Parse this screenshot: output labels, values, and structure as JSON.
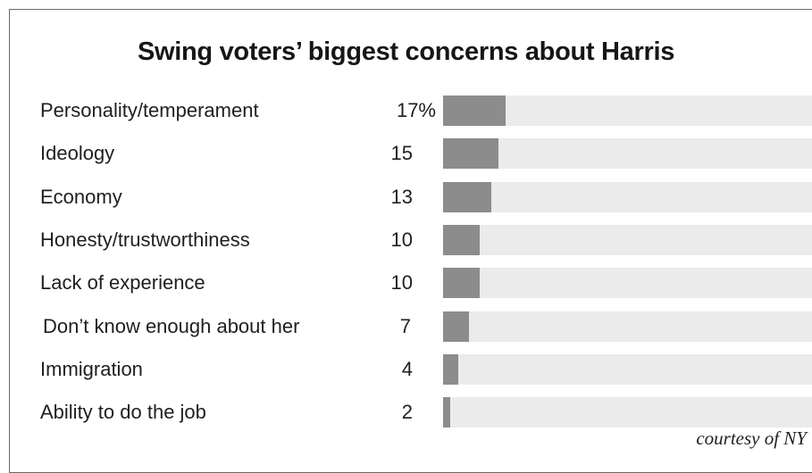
{
  "credit": "courtesy of NY",
  "colors": {
    "bar": "#8c8c8c",
    "track": "#ebebeb",
    "border": "#6a6a6a"
  },
  "chart_data": {
    "type": "bar",
    "orientation": "horizontal",
    "title": "Swing voters’ biggest concerns about Harris",
    "xlabel": "",
    "ylabel": "",
    "xlim": [
      0,
      100
    ],
    "unit": "%",
    "grid": false,
    "categories": [
      "Personality/temperament",
      "Ideology",
      "Economy",
      "Honesty/trustworthiness",
      "Lack of experience",
      "Don’t know enough about her",
      "Immigration",
      "Ability to do the job"
    ],
    "values": [
      17,
      15,
      13,
      10,
      10,
      7,
      4,
      2
    ],
    "value_labels": [
      "17%",
      "15",
      "13",
      "10",
      "10",
      "7",
      "4",
      "2"
    ]
  }
}
